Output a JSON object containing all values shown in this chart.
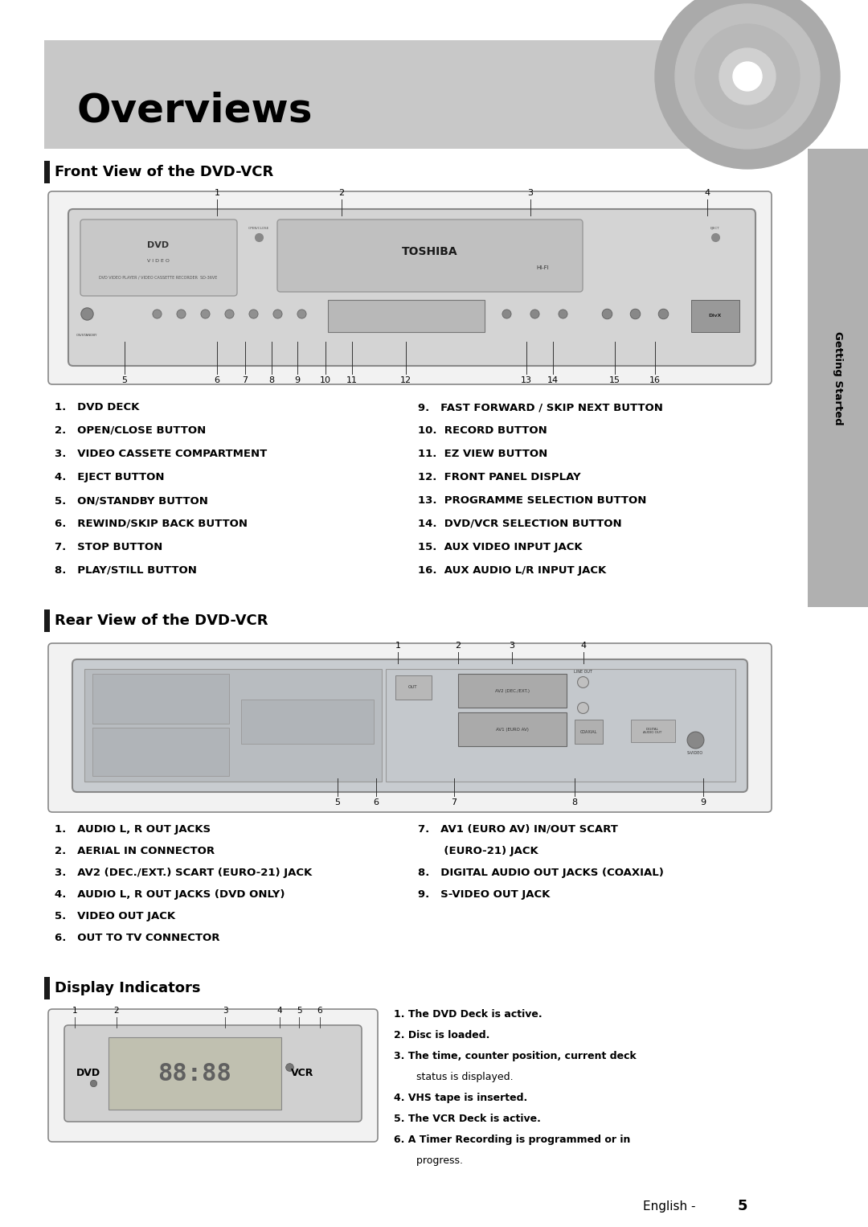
{
  "bg_color": "#ffffff",
  "header_bg": "#c8c8c8",
  "header_text": "Overviews",
  "sidebar_bg": "#b0b0b0",
  "sidebar_text": "Getting Started",
  "section_bar_color": "#1a1a1a",
  "section1_title": "Front View of the DVD-VCR",
  "section2_title": "Rear View of the DVD-VCR",
  "section3_title": "Display Indicators",
  "footer_text": "English - ",
  "footer_num": "5",
  "front_items_left": [
    "1.   DVD DECK",
    "2.   OPEN/CLOSE BUTTON",
    "3.   VIDEO CASSETE COMPARTMENT",
    "4.   EJECT BUTTON",
    "5.   ON/STANDBY BUTTON",
    "6.   REWIND/SKIP BACK BUTTON",
    "7.   STOP BUTTON",
    "8.   PLAY/STILL BUTTON"
  ],
  "front_items_right": [
    "9.   FAST FORWARD / SKIP NEXT BUTTON",
    "10.  RECORD BUTTON",
    "11.  EZ VIEW BUTTON",
    "12.  FRONT PANEL DISPLAY",
    "13.  PROGRAMME SELECTION BUTTON",
    "14.  DVD/VCR SELECTION BUTTON",
    "15.  AUX VIDEO INPUT JACK",
    "16.  AUX AUDIO L/R INPUT JACK"
  ],
  "rear_items_left": [
    "1.   AUDIO L, R OUT JACKS",
    "2.   AERIAL IN CONNECTOR",
    "3.   AV2 (DEC./EXT.) SCART (EURO-21) JACK",
    "4.   AUDIO L, R OUT JACKS (DVD ONLY)",
    "5.   VIDEO OUT JACK",
    "6.   OUT TO TV CONNECTOR"
  ],
  "rear_items_right_lines": [
    "7.   AV1 (EURO AV) IN/OUT SCART",
    "       (EURO-21) JACK",
    "8.   DIGITAL AUDIO OUT JACKS (COAXIAL)",
    "9.   S-VIDEO OUT JACK"
  ],
  "display_items": [
    [
      "1.",
      " The DVD Deck is active.",
      true
    ],
    [
      "2.",
      " Disc is loaded.",
      true
    ],
    [
      "3.",
      " The time, counter position, current deck",
      true
    ],
    [
      "",
      "       status is displayed.",
      false
    ],
    [
      "4.",
      " VHS tape is inserted.",
      true
    ],
    [
      "5.",
      " The VCR Deck is active.",
      true
    ],
    [
      "6.",
      " A Timer Recording is programmed or in",
      true
    ],
    [
      "",
      "       progress.",
      false
    ]
  ]
}
